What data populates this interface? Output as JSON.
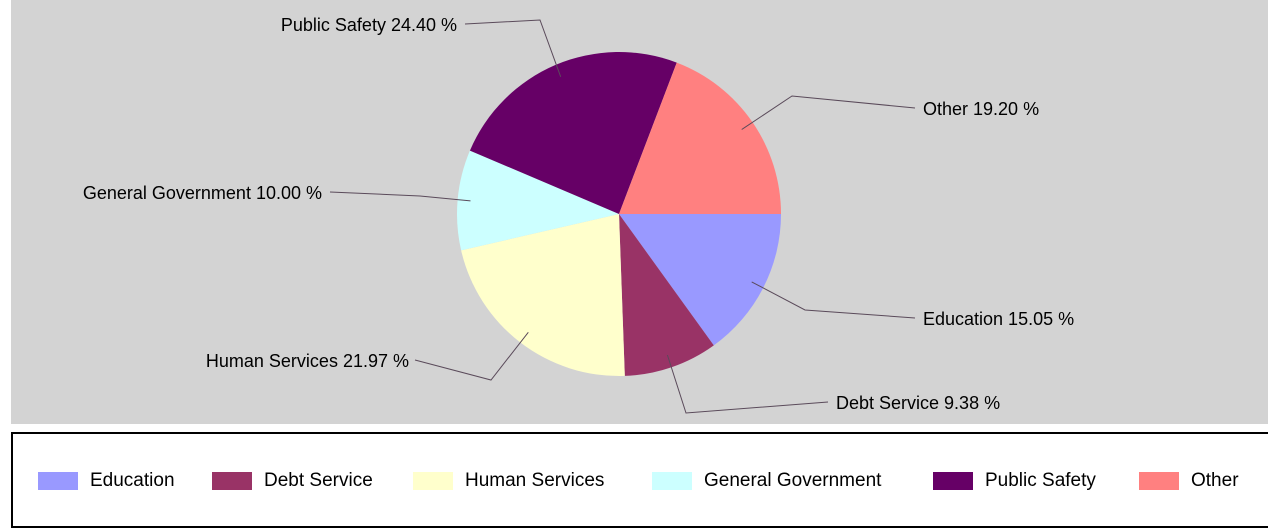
{
  "chart_data": {
    "type": "pie",
    "title": "",
    "slices": [
      {
        "name": "Education",
        "value": 15.05,
        "label": "Education 15.05 %",
        "color": "#9999ff"
      },
      {
        "name": "Debt Service",
        "value": 9.38,
        "label": "Debt Service 9.38 %",
        "color": "#993366"
      },
      {
        "name": "Human Services",
        "value": 21.97,
        "label": "Human Services 21.97 %",
        "color": "#ffffcc"
      },
      {
        "name": "General Government",
        "value": 10.0,
        "label": "General Government 10.00 %",
        "color": "#ccffff"
      },
      {
        "name": "Public Safety",
        "value": 24.4,
        "label": "Public Safety 24.40 %",
        "color": "#660066"
      },
      {
        "name": "Other",
        "value": 19.2,
        "label": "Other 19.20 %",
        "color": "#ff8080"
      }
    ],
    "legend_position": "bottom"
  }
}
